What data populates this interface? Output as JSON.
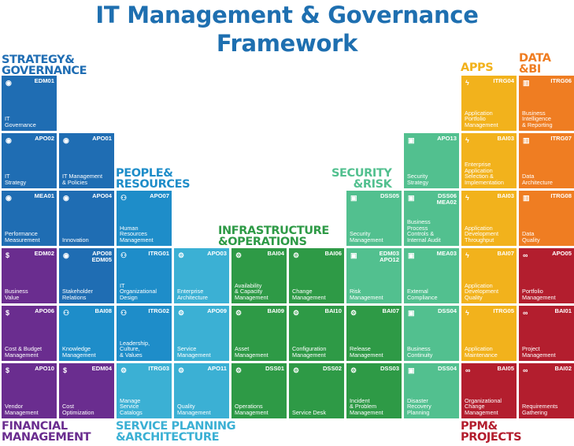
{
  "title": {
    "line1": "IT Management & Governance",
    "line2": "Framework"
  },
  "colors": {
    "strategy": "#1f6db3",
    "financial": "#6a2d8f",
    "people": "#1e8dc9",
    "service": "#3bb0d4",
    "infrastructure": "#2e9a46",
    "security": "#52c08f",
    "apps": "#f2b21c",
    "data": "#ef7d22",
    "ppm": "#b31e2e"
  },
  "categories": {
    "strategy": "STRATEGY&\nGOVERNANCE",
    "people": "PEOPLE&\nRESOURCES",
    "infrastructure": "INFRASTRUCTURE\n&OPERATIONS",
    "security": "SECURITY\n&RISK",
    "apps": "APPS",
    "data": "DATA\n&BI",
    "financial": "FINANCIAL\nMANAGEMENT",
    "service": "SERVICE PLANNING\n&ARCHITECTURE",
    "ppm": "PPM&\nPROJECTS"
  },
  "tiles": [
    {
      "code": "EDM01",
      "name": "IT\nGovernance",
      "icon": "eye-icon",
      "glyph": "◉",
      "color": "strategy"
    },
    {
      "code": "APO02",
      "name": "IT\nStrategy",
      "icon": "eye-icon",
      "glyph": "◉",
      "color": "strategy"
    },
    {
      "code": "APO01",
      "name": "IT Management\n& Policies",
      "icon": "eye-icon",
      "glyph": "◉",
      "color": "strategy"
    },
    {
      "code": "MEA01",
      "name": "Performance\nMeasurement",
      "icon": "eye-icon",
      "glyph": "◉",
      "color": "strategy"
    },
    {
      "code": "APO04",
      "name": "Innovation",
      "icon": "eye-icon",
      "glyph": "◉",
      "color": "strategy"
    },
    {
      "code": "APO07",
      "name": "Human\nResources\nManagement",
      "icon": "people-icon",
      "glyph": "⚇",
      "color": "people"
    },
    {
      "code": "DSS05",
      "name": "Security\nManagement",
      "icon": "lock-icon",
      "glyph": "▣",
      "color": "security"
    },
    {
      "code": "DSS06\nMEA02",
      "name": "Business\nProcess\nControls &\nInternal Audit",
      "icon": "lock-icon",
      "glyph": "▣",
      "color": "security"
    },
    {
      "code": "APO13",
      "name": "Security\nStrategy",
      "icon": "lock-icon",
      "glyph": "▣",
      "color": "security"
    },
    {
      "code": "ITRG04",
      "name": "Application\nPortfolio\nManagement",
      "icon": "bolt-icon",
      "glyph": "ϟ",
      "color": "apps"
    },
    {
      "code": "ITRG06",
      "name": "Business\nIntelligence\n& Reporting",
      "icon": "bar-chart-icon",
      "glyph": "▥",
      "color": "data"
    },
    {
      "code": "BAI03",
      "name": "Enterprise\nApplication\nSelection &\nImplementation",
      "icon": "bolt-icon",
      "glyph": "ϟ",
      "color": "apps"
    },
    {
      "code": "ITRG07",
      "name": "Data\nArchitecture",
      "icon": "bar-chart-icon",
      "glyph": "▥",
      "color": "data"
    },
    {
      "code": "BAI03",
      "name": "Application\nDevelopment\nThroughput",
      "icon": "bolt-icon",
      "glyph": "ϟ",
      "color": "apps"
    },
    {
      "code": "ITRG08",
      "name": "Data\nQuality",
      "icon": "bar-chart-icon",
      "glyph": "▥",
      "color": "data"
    },
    {
      "code": "EDM02",
      "name": "Business\nValue",
      "icon": "dollar-icon",
      "glyph": "$",
      "color": "financial"
    },
    {
      "code": "APO08\nEDM05",
      "name": "Stakeholder\nRelations",
      "icon": "eye-icon",
      "glyph": "◉",
      "color": "strategy"
    },
    {
      "code": "ITRG01",
      "name": "IT\nOrganizational\nDesign",
      "icon": "people-icon",
      "glyph": "⚇",
      "color": "people"
    },
    {
      "code": "APO03",
      "name": "Enterprise\nArchitecture",
      "icon": "gears-icon",
      "glyph": "⚙",
      "color": "service"
    },
    {
      "code": "BAI04",
      "name": "Availability\n& Capacity\nManagement",
      "icon": "gear-icon",
      "glyph": "⚙",
      "color": "infrastructure"
    },
    {
      "code": "BAI06",
      "name": "Change\nManagement",
      "icon": "gear-icon",
      "glyph": "⚙",
      "color": "infrastructure"
    },
    {
      "code": "EDM03\nAPO12",
      "name": "Risk\nManagement",
      "icon": "lock-icon",
      "glyph": "▣",
      "color": "security"
    },
    {
      "code": "MEA03",
      "name": "External\nCompliance",
      "icon": "lock-icon",
      "glyph": "▣",
      "color": "security"
    },
    {
      "code": "BAI07",
      "name": "Application\nDevelopment\nQuality",
      "icon": "bolt-icon",
      "glyph": "ϟ",
      "color": "apps"
    },
    {
      "code": "APO05",
      "name": "Portfolio\nManagement",
      "icon": "link-icon",
      "glyph": "∞",
      "color": "ppm"
    },
    {
      "code": "APO06",
      "name": "Cost & Budget\nManagement",
      "icon": "dollar-icon",
      "glyph": "$",
      "color": "financial"
    },
    {
      "code": "BAI08",
      "name": "Knowledge\nManagement",
      "icon": "people-icon",
      "glyph": "⚇",
      "color": "people"
    },
    {
      "code": "ITRG02",
      "name": "Leadership,\nCulture,\n& Values",
      "icon": "people-icon",
      "glyph": "⚇",
      "color": "people"
    },
    {
      "code": "APO09",
      "name": "Service\nManagement",
      "icon": "gears-icon",
      "glyph": "⚙",
      "color": "service"
    },
    {
      "code": "BAI09",
      "name": "Asset\nManagement",
      "icon": "gear-icon",
      "glyph": "⚙",
      "color": "infrastructure"
    },
    {
      "code": "BAI10",
      "name": "Configuration\nManagement",
      "icon": "gear-icon",
      "glyph": "⚙",
      "color": "infrastructure"
    },
    {
      "code": "BAI07",
      "name": "Release\nManagement",
      "icon": "gear-icon",
      "glyph": "⚙",
      "color": "infrastructure"
    },
    {
      "code": "DSS04",
      "name": "Business\nContinuity",
      "icon": "lock-icon",
      "glyph": "▣",
      "color": "security"
    },
    {
      "code": "ITRG05",
      "name": "Application\nMaintenance",
      "icon": "bolt-icon",
      "glyph": "ϟ",
      "color": "apps"
    },
    {
      "code": "BAI01",
      "name": "Project\nManagement",
      "icon": "link-icon",
      "glyph": "∞",
      "color": "ppm"
    },
    {
      "code": "APO10",
      "name": "Vendor\nManagement",
      "icon": "dollar-icon",
      "glyph": "$",
      "color": "financial"
    },
    {
      "code": "EDM04",
      "name": "Cost\nOptimization",
      "icon": "dollar-icon",
      "glyph": "$",
      "color": "financial"
    },
    {
      "code": "ITRG03",
      "name": "Manage\nService\nCatalogs",
      "icon": "gears-icon",
      "glyph": "⚙",
      "color": "service"
    },
    {
      "code": "APO11",
      "name": "Quality\nManagement",
      "icon": "gears-icon",
      "glyph": "⚙",
      "color": "service"
    },
    {
      "code": "DSS01",
      "name": "Operations\nManagement",
      "icon": "gear-icon",
      "glyph": "⚙",
      "color": "infrastructure"
    },
    {
      "code": "DSS02",
      "name": "Service Desk",
      "icon": "gear-icon",
      "glyph": "⚙",
      "color": "infrastructure"
    },
    {
      "code": "DSS03",
      "name": "Incident\n& Problem\nManagement",
      "icon": "gear-icon",
      "glyph": "⚙",
      "color": "infrastructure"
    },
    {
      "code": "DSS04",
      "name": "Disaster\nRecovery\nPlanning",
      "icon": "lock-icon",
      "glyph": "▣",
      "color": "security"
    },
    {
      "code": "BAI05",
      "name": "Organizational\nChange\nManagement",
      "icon": "link-icon",
      "glyph": "∞",
      "color": "ppm"
    },
    {
      "code": "BAI02",
      "name": "Requirements\nGathering",
      "icon": "link-icon",
      "glyph": "∞",
      "color": "ppm"
    }
  ]
}
